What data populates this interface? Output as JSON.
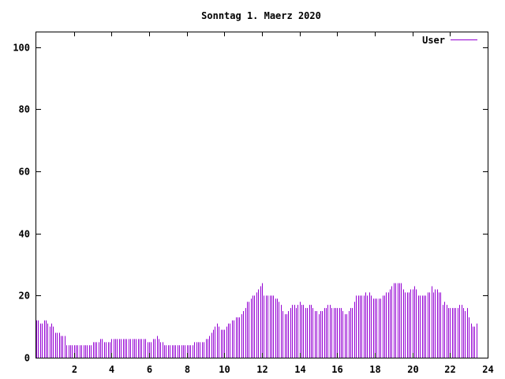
{
  "chart_data": {
    "type": "bar",
    "title": "Sonntag 1. Maerz 2020",
    "xlabel": "",
    "ylabel": "",
    "xlim": [
      0,
      24
    ],
    "ylim": [
      0,
      105
    ],
    "xticks": [
      2,
      4,
      6,
      8,
      10,
      12,
      14,
      16,
      18,
      20,
      22,
      24
    ],
    "xtick_labels": [
      "2",
      "4",
      "6",
      "8",
      "10",
      "12",
      "14",
      "16",
      "18",
      "20",
      "22",
      "24"
    ],
    "yticks": [
      0,
      20,
      40,
      60,
      80,
      100
    ],
    "ytick_labels": [
      "0",
      "20",
      "40",
      "60",
      "80",
      "100"
    ],
    "grid": false,
    "legend_position": "top-right",
    "series": [
      {
        "name": "User",
        "color": "#9400d3",
        "x_step_hours": 0.1,
        "values": [
          12,
          12,
          11,
          11,
          12,
          12,
          11,
          10,
          11,
          10,
          8,
          8,
          8,
          7,
          7,
          7,
          4,
          4,
          4,
          4,
          4,
          4,
          4,
          4,
          4,
          4,
          4,
          4,
          4,
          4,
          5,
          5,
          5,
          5,
          6,
          6,
          5,
          5,
          5,
          5,
          6,
          6,
          6,
          6,
          6,
          6,
          6,
          6,
          6,
          6,
          6,
          6,
          6,
          6,
          6,
          6,
          6,
          6,
          6,
          5,
          5,
          5,
          6,
          6,
          7,
          6,
          5,
          5,
          4,
          4,
          4,
          4,
          4,
          4,
          4,
          4,
          4,
          4,
          4,
          4,
          4,
          4,
          4,
          4,
          5,
          5,
          5,
          5,
          5,
          5,
          6,
          6,
          7,
          8,
          9,
          10,
          11,
          10,
          9,
          9,
          9,
          10,
          11,
          11,
          12,
          12,
          13,
          13,
          13,
          14,
          15,
          16,
          18,
          18,
          19,
          20,
          20,
          21,
          22,
          23,
          24,
          20,
          20,
          20,
          20,
          20,
          20,
          19,
          19,
          18,
          17,
          15,
          14,
          14,
          15,
          16,
          17,
          17,
          16,
          17,
          18,
          17,
          17,
          16,
          16,
          17,
          17,
          16,
          15,
          15,
          14,
          15,
          15,
          16,
          16,
          17,
          17,
          16,
          16,
          16,
          16,
          16,
          16,
          15,
          14,
          14,
          15,
          16,
          16,
          18,
          20,
          20,
          20,
          20,
          20,
          21,
          20,
          21,
          20,
          19,
          19,
          19,
          19,
          19,
          20,
          20,
          21,
          21,
          22,
          23,
          24,
          24,
          24,
          24,
          24,
          22,
          21,
          21,
          21,
          22,
          22,
          23,
          22,
          20,
          20,
          20,
          20,
          20,
          21,
          21,
          23,
          21,
          22,
          22,
          21,
          21,
          17,
          18,
          17,
          16,
          16,
          16,
          16,
          16,
          16,
          17,
          17,
          16,
          15,
          16,
          13,
          11,
          10,
          10,
          11
        ]
      }
    ]
  }
}
